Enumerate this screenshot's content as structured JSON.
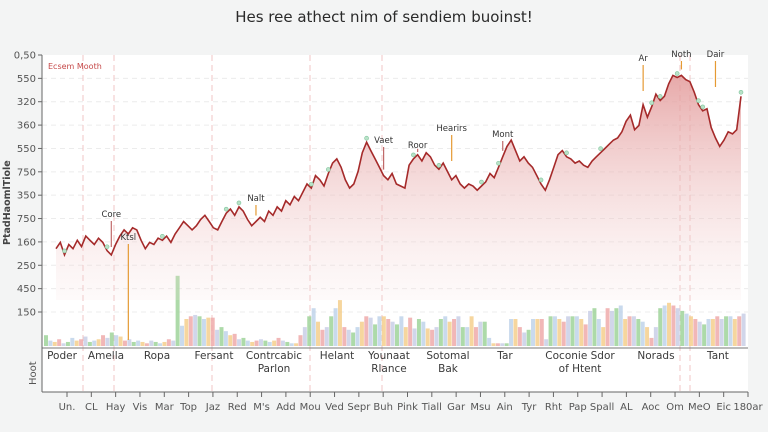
{
  "title": "Hes ree athect nim of sendiem buoinst!",
  "chart_data": {
    "type": "area",
    "title": "Hes ree athect nim of sendiem buoinst!",
    "ylabel": "PtadHaomlTiole",
    "ylabel_lower": "Hoot",
    "xlabel": "",
    "legend": {
      "label": "Ecsem Mooth",
      "placement": "top-left",
      "color": "#c64a4a"
    },
    "yticks": [
      "0,50",
      "550",
      "320",
      "360",
      "550",
      "750",
      "350",
      "750",
      "160",
      "250",
      "450",
      "150"
    ],
    "xticks": [
      "Un.",
      "CL",
      "Hay",
      "Vis",
      "Mar",
      "Top",
      "Jaz",
      "Red",
      "M's",
      "Add",
      "Mou",
      "Ved",
      "Sepr",
      "Buh",
      "Pink",
      "Tiall",
      "Gar",
      "Msu",
      "Ain",
      "Tyr",
      "Rht",
      "Pap",
      "Spall",
      "AL",
      "Aoc",
      "Om",
      "MeO",
      "Eic",
      "180ar"
    ],
    "categories": [
      {
        "label": "Poder",
        "sub": ""
      },
      {
        "label": "Amella",
        "sub": ""
      },
      {
        "label": "Ropa",
        "sub": ""
      },
      {
        "label": "Fersant",
        "sub": ""
      },
      {
        "label": "Contrcabic",
        "sub": "Parlon"
      },
      {
        "label": "Helant",
        "sub": ""
      },
      {
        "label": "Younaat",
        "sub": "Rlance"
      },
      {
        "label": "Sotomal",
        "sub": "Bak"
      },
      {
        "label": "Tar",
        "sub": ""
      },
      {
        "label": "Coconie Sdor",
        "sub": "of Htent"
      },
      {
        "label": "Norads",
        "sub": ""
      },
      {
        "label": "Tant",
        "sub": ""
      }
    ],
    "y_range": [
      0,
      100
    ],
    "grid": true,
    "series": [
      {
        "name": "Ecsem Mooth",
        "type": "line-area",
        "color": "#a52a2a",
        "fill": "#e8a5a5",
        "values": [
          27,
          30,
          24,
          29,
          27,
          31,
          28,
          33,
          31,
          29,
          32,
          30,
          26,
          24,
          29,
          33,
          36,
          34,
          37,
          36,
          31,
          27,
          30,
          29,
          32,
          31,
          33,
          30,
          34,
          37,
          40,
          38,
          36,
          38,
          41,
          43,
          40,
          37,
          36,
          40,
          44,
          46,
          43,
          47,
          45,
          41,
          38,
          40,
          42,
          40,
          45,
          43,
          47,
          45,
          50,
          48,
          52,
          50,
          54,
          58,
          56,
          62,
          60,
          57,
          63,
          68,
          70,
          66,
          60,
          56,
          58,
          64,
          73,
          78,
          74,
          70,
          66,
          62,
          60,
          63,
          58,
          57,
          56,
          67,
          70,
          72,
          69,
          73,
          71,
          67,
          65,
          68,
          64,
          60,
          62,
          58,
          56,
          58,
          57,
          55,
          57,
          59,
          63,
          61,
          66,
          71,
          76,
          79,
          74,
          69,
          71,
          68,
          66,
          62,
          58,
          55,
          60,
          66,
          72,
          74,
          71,
          70,
          68,
          69,
          67,
          66,
          69,
          71,
          73,
          75,
          77,
          79,
          80,
          83,
          88,
          91,
          84,
          86,
          96,
          90,
          95,
          101,
          98,
          100,
          106,
          110,
          109,
          110,
          108,
          107,
          102,
          96,
          93,
          94,
          85,
          80,
          76,
          79,
          83,
          82,
          84,
          100
        ]
      },
      {
        "name": "Volume",
        "type": "bar",
        "colors": [
          "#9fd39a",
          "#bfd3ea",
          "#f5cf8d",
          "#eeaaaa",
          "#c9cfe6"
        ],
        "values": [
          8,
          4,
          3,
          5,
          2,
          3,
          6,
          4,
          5,
          7,
          3,
          4,
          5,
          8,
          6,
          10,
          8,
          7,
          4,
          5,
          3,
          4,
          3,
          2,
          4,
          3,
          2,
          3,
          5,
          4,
          52,
          15,
          20,
          22,
          23,
          22,
          20,
          21,
          21,
          12,
          14,
          11,
          8,
          9,
          5,
          6,
          4,
          3,
          4,
          5,
          4,
          3,
          4,
          6,
          4,
          3,
          2,
          2,
          8,
          14,
          22,
          28,
          18,
          12,
          14,
          22,
          28,
          34,
          14,
          12,
          10,
          14,
          18,
          22,
          21,
          16,
          22,
          22,
          20,
          18,
          16,
          22,
          14,
          21,
          13,
          20,
          18,
          13,
          12,
          14,
          20,
          22,
          18,
          20,
          22,
          14,
          14,
          22,
          14,
          18,
          18,
          6,
          2,
          2,
          2,
          2,
          20,
          20,
          14,
          10,
          12,
          20,
          20,
          20,
          5,
          22,
          22,
          20,
          18,
          22,
          22,
          22,
          20,
          16,
          26,
          28,
          20,
          14,
          28,
          26,
          28,
          30,
          20,
          22,
          22,
          20,
          18,
          14,
          6,
          14,
          28,
          30,
          32,
          30,
          28,
          26,
          24,
          22,
          20,
          18,
          16,
          20,
          20,
          22,
          20,
          22,
          22,
          20,
          22,
          24
        ]
      }
    ],
    "annotations": [
      {
        "label": "Core",
        "at": 0.08,
        "color": "#c06a6a"
      },
      {
        "label": "Ktsl",
        "at": 0.105,
        "color": "#e59a33"
      },
      {
        "label": "Nalt",
        "at": 0.295,
        "color": "#e59a33"
      },
      {
        "label": "Vaet",
        "at": 0.48,
        "color": "#c06a6a"
      },
      {
        "label": "Roor",
        "at": 0.525,
        "color": "#c06a6a"
      },
      {
        "label": "Hearirs",
        "at": 0.575,
        "color": "#e59a33"
      },
      {
        "label": "Mont",
        "at": 0.655,
        "color": "#c06a6a"
      },
      {
        "label": "Ar",
        "at": 0.86,
        "color": "#e59a33"
      },
      {
        "label": "Noth",
        "at": 0.915,
        "color": "#e59a33"
      },
      {
        "label": "Dair",
        "at": 0.965,
        "color": "#e59a33"
      }
    ]
  }
}
